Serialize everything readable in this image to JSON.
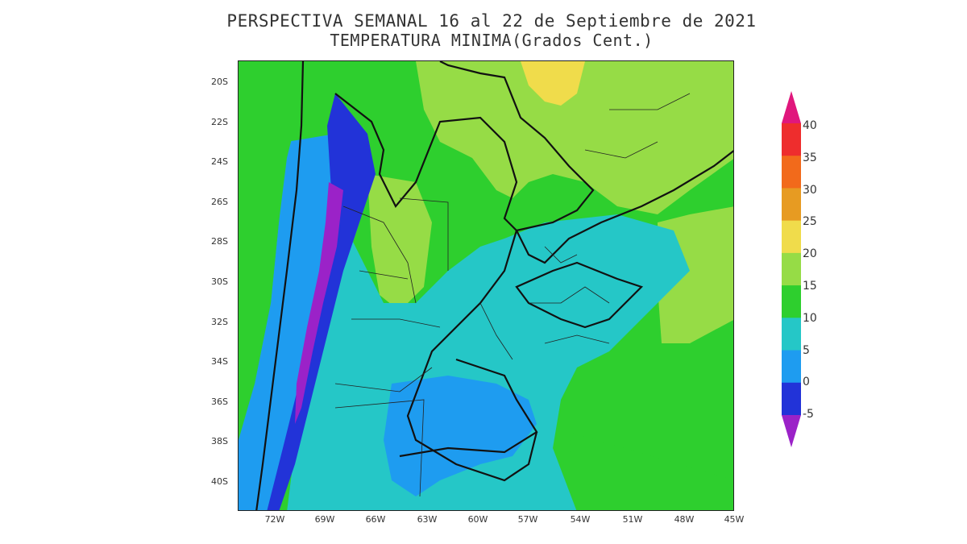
{
  "title_line1": "PERSPECTIVA SEMANAL  16 al 22 de Septiembre de 2021",
  "title_line2": "TEMPERATURA MINIMA(Grados Cent.)",
  "lat_labels": [
    "20S",
    "22S",
    "24S",
    "26S",
    "28S",
    "30S",
    "32S",
    "34S",
    "36S",
    "38S",
    "40S"
  ],
  "lon_labels": [
    "72W",
    "69W",
    "66W",
    "63W",
    "60W",
    "57W",
    "54W",
    "51W",
    "48W",
    "45W"
  ],
  "colorbar": {
    "labels": [
      "40",
      "35",
      "30",
      "25",
      "20",
      "15",
      "10",
      "5",
      "0",
      "-5"
    ],
    "colors": [
      "#e0177c",
      "#ee2d2d",
      "#f26a1b",
      "#e79b22",
      "#f0dc4b",
      "#96dc46",
      "#2ecf2e",
      "#25c7c7",
      "#1e9cf0",
      "#2233d8",
      "#9b22c8"
    ]
  }
}
